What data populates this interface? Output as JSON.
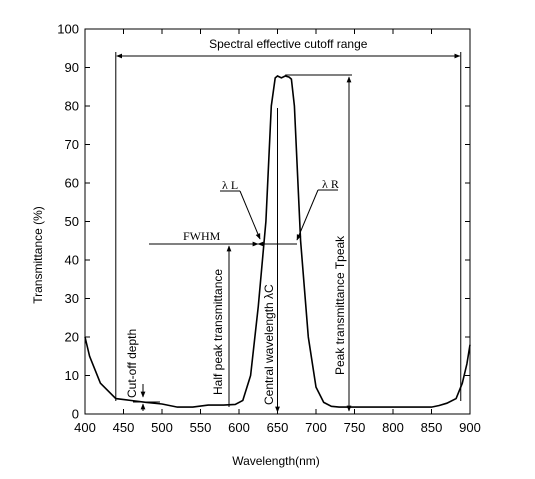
{
  "chart_data": {
    "type": "line",
    "xlabel": "Wavelength(nm)",
    "ylabel": "Transmittance (%)",
    "xlim": [
      400,
      900
    ],
    "ylim": [
      0,
      100
    ],
    "xticks": [
      400,
      450,
      500,
      550,
      600,
      650,
      700,
      750,
      800,
      850,
      900
    ],
    "yticks": [
      0,
      10,
      20,
      30,
      40,
      50,
      60,
      70,
      80,
      90,
      100
    ],
    "grid": false,
    "series": [
      {
        "x": [
          400,
          406,
          420,
          440,
          460,
          480,
          500,
          520,
          540,
          560,
          580,
          595,
          605,
          615,
          625,
          635,
          642,
          647,
          650,
          655,
          660,
          665,
          668,
          672,
          680,
          690,
          700,
          710,
          720,
          730,
          750,
          800,
          850,
          860,
          870,
          882,
          890,
          896,
          900
        ],
        "y": [
          20,
          15,
          8,
          4,
          3.5,
          3,
          2.6,
          1.8,
          1.8,
          2.3,
          2.3,
          2.5,
          3.5,
          10,
          28,
          50,
          80,
          87.3,
          87.8,
          87.3,
          87.8,
          87.5,
          87,
          80,
          45,
          20,
          7,
          3,
          2,
          1.8,
          1.8,
          1.8,
          1.8,
          2.2,
          2.8,
          4,
          8,
          13,
          18
        ]
      }
    ],
    "annotations": {
      "range_label": "Spectral effective cutoff range",
      "lambda_l": "λ L",
      "lambda_r": "λ R",
      "fwhm": "FWHM",
      "cutoff_depth": "Cut-off depth",
      "half_peak": "Half peak transmittance",
      "central_wavelength": "Central wavelength λC",
      "peak_transmittance": "Peak transmittance Tpeak"
    }
  }
}
